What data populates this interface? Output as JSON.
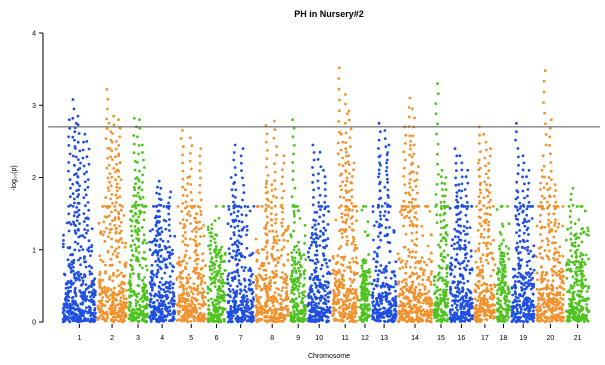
{
  "chart_data": {
    "type": "scatter",
    "title": "PH in Nursery#2",
    "xlabel": "Chromosome",
    "ylabel": "-log₁₀(p)",
    "ylim": [
      0,
      4
    ],
    "y_ticks": [
      "0",
      "1",
      "2",
      "3",
      "4"
    ],
    "significance_threshold": 2.7,
    "colors": {
      "blue": "#1f4fe0",
      "orange": "#f0922e",
      "green": "#4fc31f",
      "threshold_line": "#555555"
    },
    "chromosomes": [
      {
        "label": "1",
        "color": "blue",
        "peaks": [
          3.08,
          2.85,
          2.8,
          2.75,
          2.6,
          2.5,
          2.2
        ]
      },
      {
        "label": "2",
        "color": "orange",
        "peaks": [
          3.22,
          2.85,
          2.8,
          2.75,
          2.5,
          2.3
        ]
      },
      {
        "label": "3",
        "color": "green",
        "peaks": [
          2.82,
          2.8,
          2.45,
          2.0,
          1.95,
          1.6
        ]
      },
      {
        "label": "4",
        "color": "blue",
        "peaks": [
          1.95,
          1.85,
          1.8,
          1.6
        ]
      },
      {
        "label": "5",
        "color": "orange",
        "peaks": [
          2.65,
          2.55,
          2.4,
          2.0,
          1.5
        ]
      },
      {
        "label": "6",
        "color": "green",
        "peaks": [
          1.35,
          1.2,
          1.0
        ]
      },
      {
        "label": "7",
        "color": "blue",
        "peaks": [
          2.45,
          2.4,
          2.0,
          1.6
        ]
      },
      {
        "label": "8",
        "color": "orange",
        "peaks": [
          2.72,
          2.78,
          2.3,
          1.95,
          1.9
        ]
      },
      {
        "label": "9",
        "color": "green",
        "peaks": [
          2.8,
          1.0,
          0.9
        ]
      },
      {
        "label": "10",
        "color": "blue",
        "peaks": [
          2.45,
          2.35,
          2.1,
          1.4
        ]
      },
      {
        "label": "11",
        "color": "orange",
        "peaks": [
          3.52,
          3.15,
          2.92,
          2.6,
          2.4,
          2.2
        ]
      },
      {
        "label": "12",
        "color": "green",
        "peaks": [
          0.85,
          0.7
        ]
      },
      {
        "label": "13",
        "color": "blue",
        "peaks": [
          2.75,
          2.65,
          2.45,
          2.3
        ]
      },
      {
        "label": "14",
        "color": "orange",
        "peaks": [
          3.1,
          2.95,
          2.7,
          2.5,
          2.15
        ]
      },
      {
        "label": "15",
        "color": "green",
        "peaks": [
          3.3,
          2.1,
          2.0
        ]
      },
      {
        "label": "16",
        "color": "blue",
        "peaks": [
          2.4,
          2.3,
          2.1,
          1.9
        ]
      },
      {
        "label": "17",
        "color": "orange",
        "peaks": [
          2.7,
          2.6,
          2.4,
          2.2,
          1.9
        ]
      },
      {
        "label": "18",
        "color": "green",
        "peaks": [
          1.05,
          0.95
        ]
      },
      {
        "label": "19",
        "color": "blue",
        "peaks": [
          2.75,
          2.3,
          2.1,
          1.8
        ]
      },
      {
        "label": "20",
        "color": "orange",
        "peaks": [
          3.48,
          2.8,
          2.1,
          2.0,
          1.9
        ]
      },
      {
        "label": "21",
        "color": "green",
        "peaks": [
          1.85,
          1.2,
          0.95
        ]
      }
    ]
  }
}
